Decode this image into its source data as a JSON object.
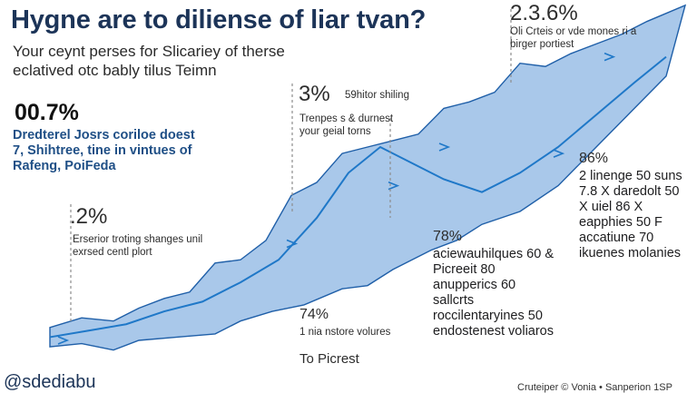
{
  "header": {
    "title": "Hygne are to diliense of liar tvan?",
    "subtitle": "Your ceynt perses for Slicariey of therse eclatived otc bably tilus Teimn"
  },
  "callouts": {
    "big_pct": "00.7%",
    "blue_note": "Dredterel Josrs coriloe doest 7, Shihtree, tine in vintues of Rafeng, PoiFeda",
    "pct_a": "2.3.6%",
    "note_a": "Oli Crteis or vde mones ri a birger portiest",
    "pct_b": "3%",
    "note_b": "Trenpes s & durnest your geial torns",
    "note_b_top": "59hitor shiling",
    "pct_c": ".2%",
    "note_c": "Erserior troting shanges unil exrsed centl plort",
    "pct_d": "78%",
    "list_d": "aciewauhilques 60 & Picreeit 80 anupperics 60 sallcrts roccilentaryines 50 endostenest voliaros",
    "pct_e": "86%",
    "list_e": "2 linenge 50 suns 7.8 X daredolt 50 X uiel 86 X eapphies 50 F accatiune 70 ikuenes molanies",
    "pct_f": "74%",
    "note_f": "1 nia nstore volures",
    "note_f2": "To Picrest"
  },
  "footer": {
    "handle": "@sdediabu",
    "credit": "Cruteiper © Vonia • Sanperion 1SP"
  },
  "chart_data": {
    "type": "area",
    "title": "Hygne are to diliense of liar tvan?",
    "xlabel": "",
    "ylabel": "",
    "grid": false,
    "legend": "none",
    "series": [
      {
        "upper": [
          [
            0,
            4
          ],
          [
            5,
            7
          ],
          [
            10,
            6
          ],
          [
            14,
            10
          ],
          [
            18,
            13
          ],
          [
            22,
            15
          ],
          [
            26,
            24
          ],
          [
            30,
            25
          ],
          [
            34,
            31
          ],
          [
            38,
            45
          ],
          [
            42,
            49
          ],
          [
            46,
            58
          ],
          [
            50,
            60
          ],
          [
            54,
            62
          ],
          [
            58,
            64
          ],
          [
            62,
            72
          ],
          [
            66,
            74
          ],
          [
            70,
            77
          ],
          [
            74,
            86
          ],
          [
            78,
            85
          ],
          [
            82,
            89
          ],
          [
            86,
            92
          ],
          [
            90,
            95
          ],
          [
            94,
            99
          ],
          [
            100,
            104
          ]
        ],
        "mid": [
          [
            0,
            1
          ],
          [
            6,
            3
          ],
          [
            12,
            5
          ],
          [
            18,
            9
          ],
          [
            24,
            12
          ],
          [
            30,
            18
          ],
          [
            36,
            25
          ],
          [
            42,
            38
          ],
          [
            47,
            52
          ],
          [
            52,
            60
          ],
          [
            57,
            55
          ],
          [
            62,
            50
          ],
          [
            68,
            46
          ],
          [
            74,
            52
          ],
          [
            80,
            60
          ],
          [
            86,
            70
          ],
          [
            92,
            80
          ],
          [
            97,
            88
          ]
        ],
        "lower": [
          [
            0,
            -2
          ],
          [
            5,
            -1
          ],
          [
            10,
            -3
          ],
          [
            14,
            0
          ],
          [
            20,
            1
          ],
          [
            26,
            2
          ],
          [
            30,
            6
          ],
          [
            35,
            9
          ],
          [
            40,
            11
          ],
          [
            46,
            16
          ],
          [
            50,
            17
          ],
          [
            54,
            22
          ],
          [
            60,
            28
          ],
          [
            64,
            31
          ],
          [
            68,
            36
          ],
          [
            74,
            40
          ],
          [
            80,
            48
          ],
          [
            86,
            60
          ],
          [
            92,
            72
          ],
          [
            97,
            82
          ]
        ]
      }
    ],
    "colors": {
      "fill": "#a9c8ea",
      "edge": "#1f5fa8",
      "line": "#1f78c8",
      "leader": "#8c8c8c"
    }
  }
}
